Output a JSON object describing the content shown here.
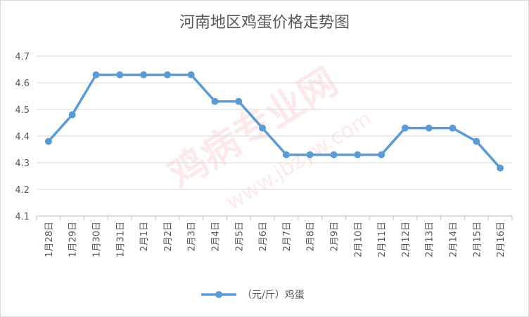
{
  "chart_data": {
    "type": "line",
    "title": "河南地区鸡蛋价格走势图",
    "categories": [
      "1月28日",
      "1月29日",
      "1月30日",
      "1月31日",
      "2月1日",
      "2月2日",
      "2月3日",
      "2月4日",
      "2月5日",
      "2月6日",
      "2月7日",
      "2月8日",
      "2月9日",
      "2月10日",
      "2月11日",
      "2月12日",
      "2月13日",
      "2月14日",
      "2月15日",
      "2月16日"
    ],
    "series": [
      {
        "name": "（元/斤）鸡蛋",
        "values": [
          4.38,
          4.48,
          4.63,
          4.63,
          4.63,
          4.63,
          4.63,
          4.53,
          4.53,
          4.43,
          4.33,
          4.33,
          4.33,
          4.33,
          4.33,
          4.43,
          4.43,
          4.43,
          4.38,
          4.28
        ],
        "color": "#5b9bd5"
      }
    ],
    "ylim": [
      4.1,
      4.7
    ],
    "yticks": [
      "4.1",
      "4.2",
      "4.3",
      "4.4",
      "4.5",
      "4.6",
      "4.7"
    ],
    "grid": true,
    "legend": "bottom",
    "watermark": [
      "鸡病专业网",
      "www.jbzyw.com"
    ]
  }
}
